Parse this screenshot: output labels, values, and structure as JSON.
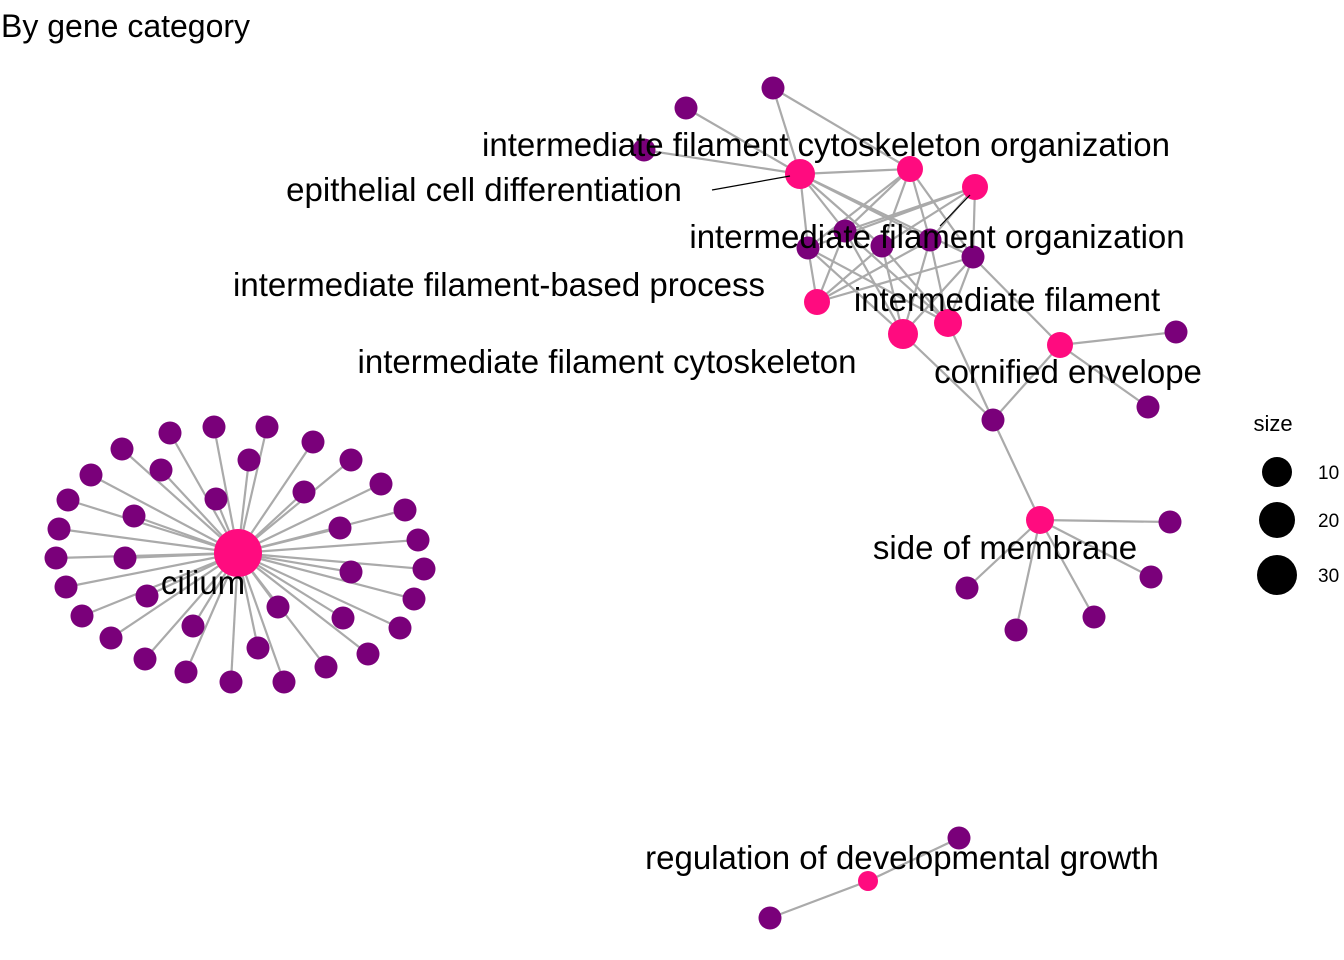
{
  "title": "By gene category",
  "legend": {
    "title": "size",
    "items": [
      {
        "label": "10",
        "value": 10
      },
      {
        "label": "20",
        "value": 20
      },
      {
        "label": "30",
        "value": 30
      }
    ]
  },
  "colors": {
    "category": "#ff0b7f",
    "gene": "#7a007a",
    "edge": "#aaaaaa",
    "label_line": "#000000",
    "legend_dot": "#000000"
  },
  "categories": [
    {
      "id": "cilium",
      "label": "cilium",
      "size": 33
    },
    {
      "id": "epi",
      "label": "epithelial cell differentiation",
      "size": 7
    },
    {
      "id": "ifco",
      "label": "intermediate filament cytoskeleton organization",
      "size": 6
    },
    {
      "id": "ifo",
      "label": "intermediate filament organization",
      "size": 5
    },
    {
      "id": "ifbp",
      "label": "intermediate filament-based process",
      "size": 6
    },
    {
      "id": "if",
      "label": "intermediate filament",
      "size": 7
    },
    {
      "id": "ifc",
      "label": "intermediate filament cytoskeleton",
      "size": 8
    },
    {
      "id": "ce",
      "label": "cornified envelope",
      "size": 4
    },
    {
      "id": "som",
      "label": "side of membrane",
      "size": 7
    },
    {
      "id": "rdg",
      "label": "regulation of developmental growth",
      "size": 2
    }
  ]
}
